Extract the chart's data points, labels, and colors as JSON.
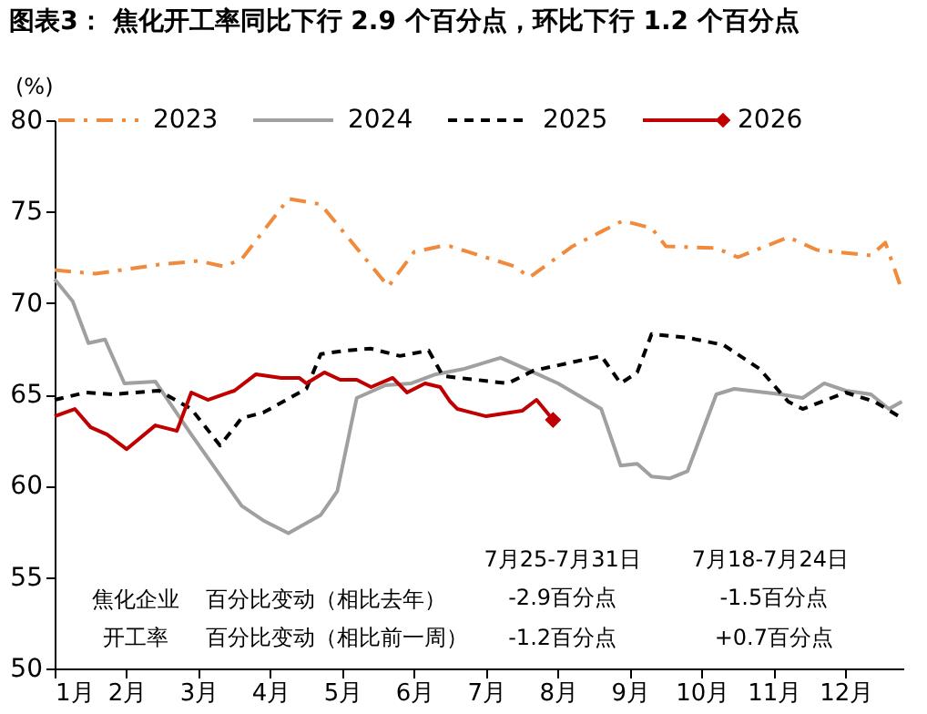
{
  "chart_data": {
    "type": "line",
    "title": "图表3：  焦化开工率同比下行 2.9 个百分点，环比下行 1.2 个百分点",
    "ylabel": "(%)",
    "xlim": [
      1,
      12.8
    ],
    "xticks": [
      {
        "value": 1,
        "label": "1月"
      },
      {
        "value": 2,
        "label": "2月"
      },
      {
        "value": 3,
        "label": "3月"
      },
      {
        "value": 4,
        "label": "4月"
      },
      {
        "value": 5,
        "label": "5月"
      },
      {
        "value": 6,
        "label": "6月"
      },
      {
        "value": 7,
        "label": "7月"
      },
      {
        "value": 8,
        "label": "8月"
      },
      {
        "value": 9,
        "label": "9月"
      },
      {
        "value": 10,
        "label": "10月"
      },
      {
        "value": 11,
        "label": "11月"
      },
      {
        "value": 12,
        "label": "12月"
      }
    ],
    "ylim": [
      50,
      80
    ],
    "yticks": [
      50,
      55,
      60,
      65,
      70,
      75,
      80
    ],
    "grid": false,
    "legend": "top",
    "series": [
      {
        "name": "2023",
        "color": "#f08a3c",
        "line_style": "dashdot",
        "x": [
          1.0,
          1.57,
          2.45,
          3.0,
          3.35,
          3.6,
          4.25,
          4.7,
          5.2,
          5.64,
          6.0,
          6.36,
          6.5,
          7.4,
          7.6,
          8.2,
          8.6,
          8.9,
          9.3,
          9.5,
          10.2,
          10.5,
          11.2,
          11.6,
          12.35,
          12.55,
          12.78
        ],
        "values": [
          71.8,
          71.6,
          72.1,
          72.3,
          72.0,
          72.4,
          75.7,
          75.4,
          73.0,
          70.9,
          72.8,
          73.1,
          73.1,
          72.0,
          71.4,
          73.1,
          73.9,
          74.5,
          74.1,
          73.1,
          73.0,
          72.5,
          73.6,
          72.9,
          72.6,
          73.3,
          70.7
        ]
      },
      {
        "name": "2024",
        "color": "#a0a0a0",
        "line_style": "solid",
        "x": [
          1.0,
          1.25,
          1.47,
          1.7,
          1.97,
          2.4,
          2.9,
          3.35,
          3.6,
          3.9,
          4.25,
          4.7,
          4.93,
          5.2,
          5.6,
          5.96,
          6.3,
          6.7,
          7.2,
          7.66,
          8.0,
          8.6,
          8.87,
          9.1,
          9.3,
          9.55,
          9.8,
          10.2,
          10.45,
          11.1,
          11.4,
          11.7,
          12.0,
          12.35,
          12.6,
          12.78
        ],
        "values": [
          71.3,
          70.1,
          67.8,
          68.0,
          65.6,
          65.7,
          62.8,
          60.3,
          58.9,
          58.1,
          57.4,
          58.4,
          59.7,
          64.8,
          65.5,
          65.6,
          66.1,
          66.4,
          67.0,
          66.2,
          65.6,
          64.2,
          61.1,
          61.2,
          60.5,
          60.4,
          60.8,
          65.0,
          65.3,
          65.0,
          64.8,
          65.6,
          65.2,
          65.0,
          64.2,
          64.6
        ]
      },
      {
        "name": "2025",
        "color": "#000000",
        "line_style": "dashed",
        "x": [
          1.0,
          1.43,
          1.8,
          2.45,
          2.9,
          3.3,
          3.6,
          3.9,
          4.5,
          4.7,
          5.05,
          5.4,
          5.8,
          6.2,
          6.4,
          7.3,
          7.66,
          8.6,
          8.87,
          9.1,
          9.3,
          9.8,
          10.3,
          10.8,
          11.2,
          11.4,
          12.0,
          12.4,
          12.78
        ],
        "values": [
          64.7,
          65.1,
          65.0,
          65.2,
          64.2,
          62.2,
          63.7,
          64.0,
          65.3,
          67.2,
          67.4,
          67.5,
          67.1,
          67.4,
          66.0,
          65.6,
          66.3,
          67.1,
          65.6,
          66.2,
          68.3,
          68.1,
          67.7,
          66.4,
          64.6,
          64.2,
          65.1,
          64.6,
          63.7
        ]
      },
      {
        "name": "2026",
        "color": "#c00000",
        "line_style": "solid",
        "x": [
          1.0,
          1.28,
          1.5,
          1.73,
          2.0,
          2.4,
          2.7,
          2.9,
          3.13,
          3.5,
          3.8,
          4.15,
          4.4,
          4.5,
          4.75,
          4.97,
          5.2,
          5.4,
          5.7,
          5.9,
          6.15,
          6.36,
          6.5,
          6.6,
          7.0,
          7.5,
          7.7,
          7.93
        ],
        "values": [
          63.8,
          64.2,
          63.2,
          62.8,
          62.0,
          63.3,
          63.0,
          65.1,
          64.7,
          65.2,
          66.1,
          65.9,
          65.9,
          65.6,
          66.2,
          65.8,
          65.8,
          65.4,
          65.9,
          65.1,
          65.6,
          65.4,
          64.6,
          64.2,
          63.8,
          64.1,
          64.7,
          63.6
        ]
      },
      {
        "type": "scatter",
        "color": "#c00000",
        "marker": "diamond",
        "x": [
          7.93
        ],
        "values": [
          63.6
        ]
      }
    ],
    "annotations": [
      "焦化企业",
      "开工率",
      "百分比变动（相比去年）",
      "百分比变动（相比前一周）",
      "7月25-7月31日",
      "-2.9百分点",
      "-1.2百分点",
      "7月18-7月24日",
      "-1.5百分点",
      "+0.7百分点"
    ]
  }
}
